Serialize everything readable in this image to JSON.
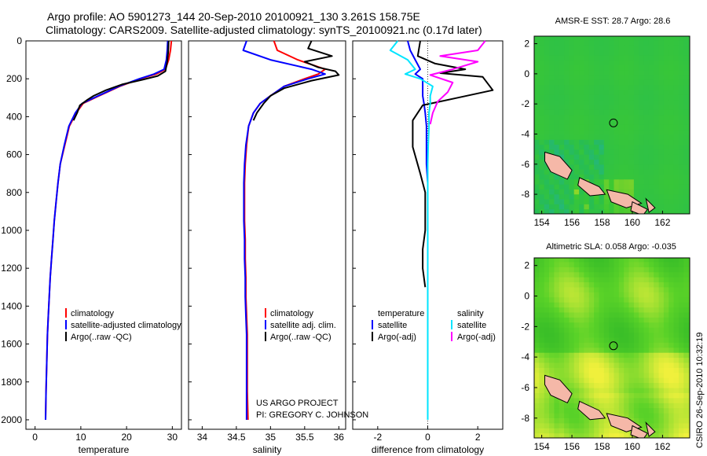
{
  "title": {
    "line1": "Argo profile: AO 5901273_144 20-Sep-2010 20100921_130 3.261S 158.75E",
    "line2": "Climatology: CARS2009. Satellite-adjusted climatology: synTS_20100921.nc (0.17d later)"
  },
  "footer_note": {
    "line1": "US ARGO PROJECT",
    "line2": "PI: GREGORY C. JOHNSON"
  },
  "side_stamp": "CSIRO 26-Sep-2010 10:32:19",
  "colors": {
    "climatology": "#ff0000",
    "satellite": "#0000ff",
    "argo": "#000000",
    "cyan": "#00e5ff",
    "magenta": "#ff00ff",
    "land": "#f5b8a8"
  },
  "chart_data": [
    {
      "type": "line",
      "xlabel": "temperature",
      "ylabel": "",
      "xlim": [
        -2,
        32
      ],
      "ylim": [
        2050,
        0
      ],
      "y_inverted": true,
      "xticks": [
        0,
        10,
        20,
        30
      ],
      "yticks": [
        0,
        200,
        400,
        600,
        800,
        1000,
        1200,
        1400,
        1600,
        1800,
        2000
      ],
      "legend": {
        "placement": "bottom-right",
        "entries": [
          "climatology",
          "satellite-adjusted climatology",
          "Argo(..raw -QC)"
        ]
      },
      "series": [
        {
          "name": "climatology",
          "color": "#ff0000",
          "x": [
            29.8,
            29.6,
            29.2,
            28.5,
            26.5,
            23.0,
            18.5,
            14.0,
            10.5,
            9.0,
            7.5,
            6.5,
            5.5,
            5.0,
            4.6,
            4.2,
            3.9,
            3.6,
            3.3,
            3.1,
            2.9,
            2.7,
            2.6,
            2.5,
            2.4,
            2.3
          ],
          "y": [
            0,
            50,
            100,
            150,
            175,
            200,
            240,
            290,
            330,
            380,
            450,
            550,
            650,
            750,
            850,
            950,
            1050,
            1150,
            1250,
            1350,
            1450,
            1550,
            1650,
            1750,
            1850,
            2000
          ]
        },
        {
          "name": "satellite-adjusted climatology",
          "color": "#0000ff",
          "x": [
            29.0,
            28.9,
            28.7,
            28.2,
            26.0,
            22.8,
            18.3,
            13.8,
            10.3,
            8.8,
            7.4,
            6.4,
            5.5,
            5.0,
            4.6,
            4.2,
            3.9,
            3.6,
            3.3,
            3.1,
            2.9,
            2.7,
            2.6,
            2.5,
            2.4,
            2.3
          ],
          "y": [
            0,
            50,
            100,
            150,
            175,
            200,
            240,
            290,
            330,
            380,
            450,
            550,
            650,
            750,
            850,
            950,
            1050,
            1150,
            1250,
            1350,
            1450,
            1550,
            1650,
            1750,
            1850,
            2000
          ]
        },
        {
          "name": "Argo(..raw -QC)",
          "color": "#000000",
          "x": [
            29.2,
            29.1,
            28.9,
            28.5,
            26.8,
            23.5,
            19.0,
            15.5,
            12.8,
            11.5,
            9.8,
            9.2,
            8.4
          ],
          "y": [
            0,
            60,
            110,
            160,
            185,
            205,
            230,
            260,
            290,
            310,
            340,
            380,
            420
          ]
        }
      ]
    },
    {
      "type": "line",
      "xlabel": "salinity",
      "ylabel": "",
      "xlim": [
        33.8,
        36.1
      ],
      "ylim": [
        2050,
        0
      ],
      "y_inverted": true,
      "xticks": [
        34,
        34.5,
        35,
        35.5,
        36
      ],
      "legend": {
        "placement": "bottom-right",
        "entries": [
          "climatology",
          "satellite adj. clim.",
          "Argo(..raw -QC)"
        ]
      },
      "series": [
        {
          "name": "climatology",
          "color": "#ff0000",
          "x": [
            35.05,
            35.1,
            35.4,
            35.8,
            35.7,
            35.5,
            35.2,
            35.0,
            34.85,
            34.75,
            34.68,
            34.65,
            34.63,
            34.62,
            34.62,
            34.62,
            34.63,
            34.63,
            34.64,
            34.64,
            34.65,
            34.66,
            34.66,
            34.66,
            34.66,
            34.67
          ],
          "y": [
            0,
            50,
            100,
            150,
            175,
            200,
            240,
            290,
            330,
            380,
            450,
            550,
            650,
            750,
            850,
            950,
            1050,
            1150,
            1250,
            1350,
            1450,
            1550,
            1650,
            1750,
            1850,
            2000
          ]
        },
        {
          "name": "satellite adj. clim.",
          "color": "#0000ff",
          "x": [
            34.65,
            34.6,
            35.0,
            35.6,
            35.8,
            35.55,
            35.2,
            35.0,
            34.85,
            34.75,
            34.68,
            34.64,
            34.62,
            34.61,
            34.61,
            34.61,
            34.62,
            34.62,
            34.63,
            34.63,
            34.64,
            34.65,
            34.65,
            34.65,
            34.65,
            34.65
          ],
          "y": [
            0,
            50,
            100,
            150,
            175,
            200,
            240,
            290,
            330,
            380,
            450,
            550,
            650,
            750,
            850,
            950,
            1050,
            1150,
            1250,
            1350,
            1450,
            1550,
            1650,
            1750,
            1850,
            2000
          ]
        },
        {
          "name": "Argo(..raw -QC)",
          "color": "#000000",
          "x": [
            35.6,
            35.55,
            35.9,
            35.5,
            35.7,
            35.95,
            36.0,
            35.6,
            35.2,
            35.0,
            34.9,
            34.8,
            34.75
          ],
          "y": [
            0,
            40,
            80,
            110,
            140,
            160,
            180,
            210,
            250,
            290,
            330,
            380,
            420
          ]
        }
      ]
    },
    {
      "type": "line",
      "xlabel": "difference from climatology",
      "ylabel": "",
      "xlim": [
        -3,
        3
      ],
      "ylim": [
        2050,
        0
      ],
      "y_inverted": true,
      "xticks": [
        -2,
        0,
        2
      ],
      "legend": {
        "placement": "bottom",
        "entries": [
          "temperature",
          "satellite",
          "Argo(-adj)",
          "salinity",
          "satellite",
          "Argo(-adj)"
        ]
      },
      "series": [
        {
          "name": "temperature satellite",
          "color": "#0000ff",
          "x": [
            -0.8,
            -0.7,
            -0.5,
            -0.3,
            -0.5,
            -0.2,
            -0.2,
            -0.2,
            -0.15,
            -0.1,
            -0.05,
            -0.05,
            -0.05,
            0,
            0,
            0,
            0,
            0,
            0,
            0,
            0,
            0,
            0,
            0,
            0,
            0
          ],
          "y": [
            0,
            50,
            100,
            150,
            175,
            200,
            240,
            290,
            330,
            380,
            450,
            550,
            650,
            750,
            850,
            950,
            1050,
            1150,
            1250,
            1350,
            1450,
            1550,
            1650,
            1750,
            1850,
            2000
          ]
        },
        {
          "name": "temperature Argo(-adj)",
          "color": "#000000",
          "x": [
            -0.3,
            -0.4,
            0.3,
            1.5,
            0.5,
            2.2,
            2.6,
            1.2,
            -0.2,
            -0.6,
            -0.6,
            -0.3,
            -0.1,
            -0.1,
            -0.1,
            -0.2,
            -0.2,
            -0.1
          ],
          "y": [
            0,
            80,
            120,
            150,
            170,
            190,
            260,
            300,
            340,
            420,
            560,
            700,
            800,
            900,
            1000,
            1100,
            1200,
            1300
          ]
        },
        {
          "name": "salinity satellite",
          "color": "#00e5ff",
          "x": [
            -1.2,
            -1.5,
            -0.8,
            -0.5,
            -0.9,
            -0.3,
            0.2,
            0.1,
            0.1,
            0.05,
            0.05,
            0.02,
            0.0,
            0.0,
            0.0,
            0.0,
            0.0,
            0.0,
            0.0,
            0.0,
            0.0,
            0.0,
            0.0,
            0.0,
            0.0,
            0.0
          ],
          "y": [
            0,
            50,
            100,
            150,
            175,
            200,
            240,
            290,
            330,
            380,
            450,
            550,
            650,
            750,
            850,
            950,
            1050,
            1150,
            1250,
            1350,
            1450,
            1550,
            1650,
            1750,
            1850,
            2000
          ]
        },
        {
          "name": "salinity Argo(-adj)",
          "color": "#ff00ff",
          "x": [
            2.3,
            2.0,
            0.5,
            2.0,
            1.0,
            0.1,
            1.0,
            0.8,
            0.4,
            0.2,
            0.1
          ],
          "y": [
            0,
            50,
            80,
            110,
            150,
            180,
            220,
            270,
            320,
            380,
            440
          ]
        }
      ]
    },
    {
      "type": "heatmap",
      "title": "AMSR-E SST: 28.7 Argo: 28.6",
      "xlim": [
        153.5,
        163.8
      ],
      "ylim": [
        -9.3,
        2.5
      ],
      "xticks": [
        154,
        156,
        158,
        160,
        162
      ],
      "yticks": [
        2,
        0,
        -2,
        -4,
        -6,
        -8
      ],
      "marker": {
        "x": 158.75,
        "y": -3.261
      }
    },
    {
      "type": "heatmap",
      "title": "Altimetric SLA: 0.058 Argo: -0.035",
      "xlim": [
        153.5,
        163.8
      ],
      "ylim": [
        -9.3,
        2.5
      ],
      "xticks": [
        154,
        156,
        158,
        160,
        162
      ],
      "yticks": [
        2,
        0,
        -2,
        -4,
        -6,
        -8
      ],
      "marker": {
        "x": 158.75,
        "y": -3.261
      }
    }
  ]
}
